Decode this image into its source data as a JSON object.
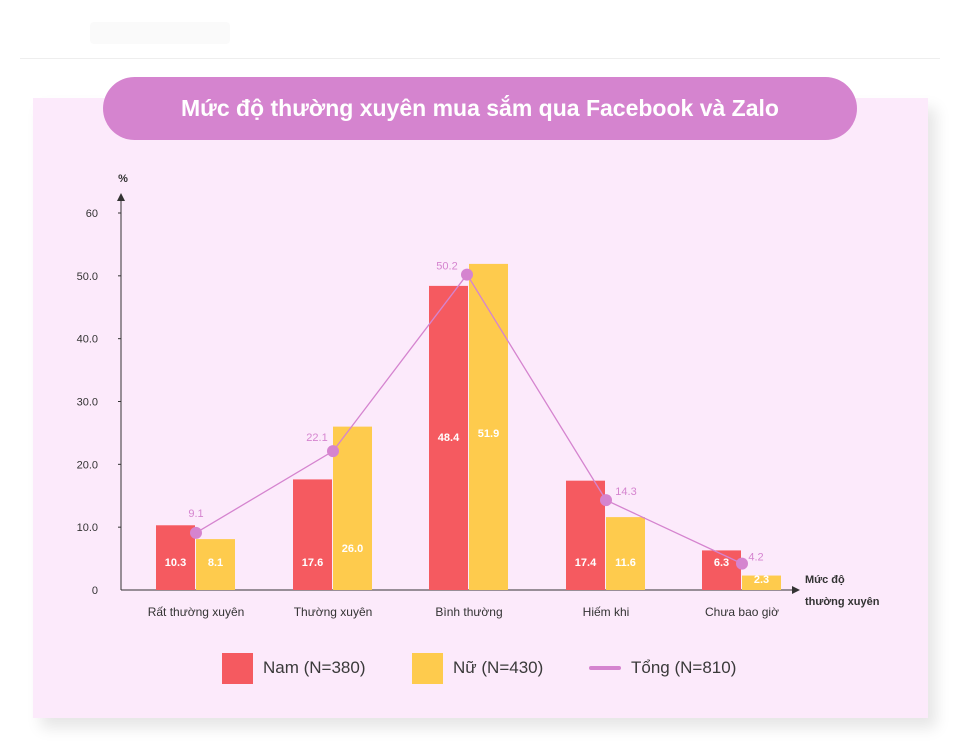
{
  "title": "Mức độ thường xuyên mua sắm qua Facebook và Zalo",
  "colors": {
    "nam": "#f55a60",
    "nu": "#fecb4d",
    "tong": "#d584cf",
    "background": "#fceafb",
    "axis": "#333333"
  },
  "legend": {
    "nam": "Nam (N=380)",
    "nu": "Nữ (N=430)",
    "tong": "Tổng (N=810)"
  },
  "chart_data": {
    "type": "bar",
    "title": "Mức độ thường xuyên mua sắm qua Facebook và Zalo",
    "ylabel": "%",
    "xlabel_line1": "Mức độ",
    "xlabel_line2": "thường xuyên",
    "ylim": [
      0,
      60
    ],
    "yticks": [
      "0",
      "10.0",
      "20.0",
      "30.0",
      "40.0",
      "50.0",
      "60"
    ],
    "categories": [
      "Rất thường xuyên",
      "Thường xuyên",
      "Bình thường",
      "Hiếm khi",
      "Chưa bao giờ"
    ],
    "series": [
      {
        "name": "Nam (N=380)",
        "type": "bar",
        "values": [
          10.3,
          17.6,
          48.4,
          17.4,
          6.3
        ]
      },
      {
        "name": "Nữ (N=430)",
        "type": "bar",
        "values": [
          8.1,
          26.0,
          51.9,
          11.6,
          2.3
        ]
      },
      {
        "name": "Tổng (N=810)",
        "type": "line",
        "values": [
          9.1,
          22.1,
          50.2,
          14.3,
          4.2
        ]
      }
    ],
    "legend_position": "bottom",
    "grid": false
  }
}
